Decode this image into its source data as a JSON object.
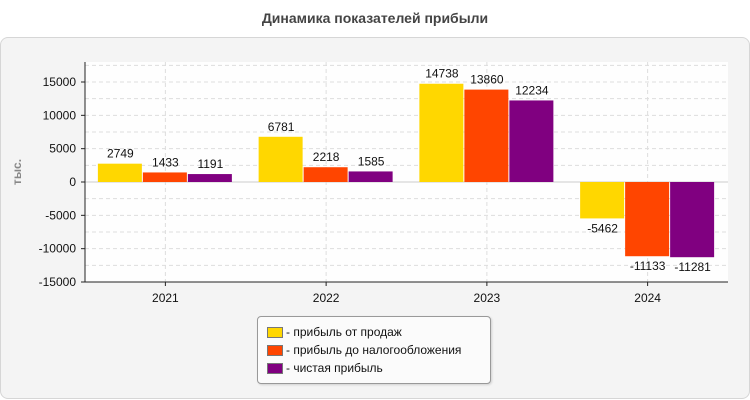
{
  "chart_data": {
    "type": "bar",
    "title": "Динамика показателей прибыли",
    "ylabel": "тыс.",
    "xlabel": "",
    "categories": [
      "2021",
      "2022",
      "2023",
      "2024"
    ],
    "series": [
      {
        "name": "прибыль от продаж",
        "color": "#ffd700",
        "values": [
          2749,
          6781,
          14738,
          -5462
        ]
      },
      {
        "name": "прибыль до налогообложения",
        "color": "#ff4500",
        "values": [
          1433,
          2218,
          13860,
          -11133
        ]
      },
      {
        "name": "чистая прибыль",
        "color": "#800080",
        "values": [
          1191,
          1585,
          12234,
          -11281
        ]
      }
    ],
    "yticks": [
      15000,
      10000,
      5000,
      0,
      -5000,
      -10000,
      -15000
    ],
    "ylim": [
      -15000,
      18000
    ],
    "grid": true,
    "legend_position": "bottom",
    "legend_prefix": "- "
  }
}
